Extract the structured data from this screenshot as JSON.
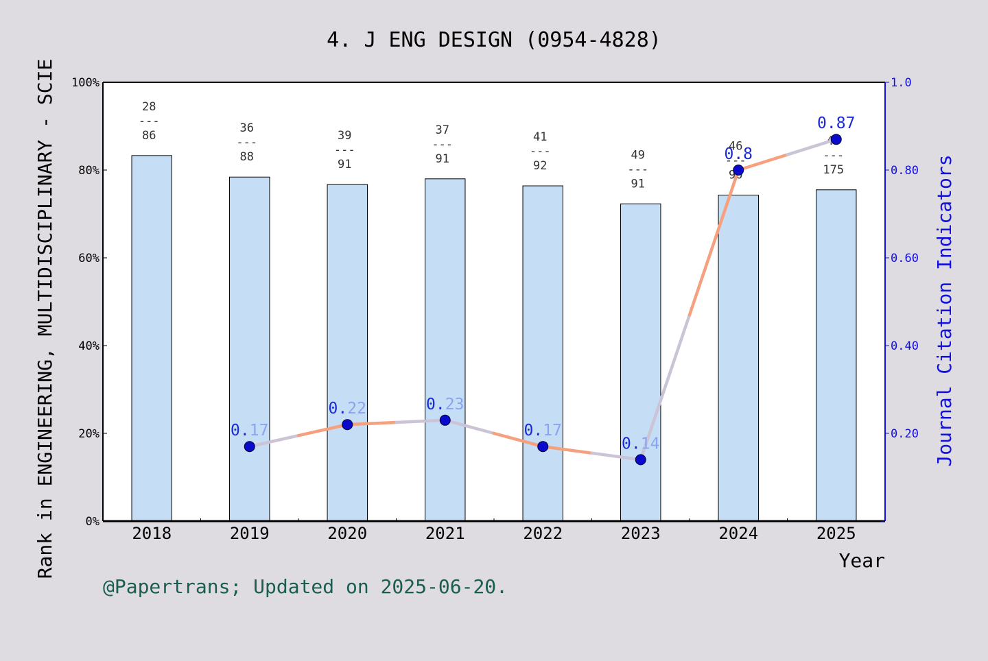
{
  "chart_data": {
    "type": "bar",
    "title": "4. J ENG DESIGN (0954-4828)",
    "xlabel": "Year",
    "ylabel": "Rank in ENGINEERING, MULTIDISCIPLINARY - SCIE",
    "y2label": "Journal Citation Indicators",
    "categories": [
      "2018",
      "2019",
      "2020",
      "2021",
      "2022",
      "2023",
      "2024",
      "2025"
    ],
    "ylim": [
      0,
      100
    ],
    "yticks": [
      "0%",
      "20%",
      "40%",
      "60%",
      "80%",
      "100%"
    ],
    "y2lim": [
      0,
      1.0
    ],
    "y2ticks": [
      "0.20",
      "0.40",
      "0.60",
      "0.80",
      "1.0"
    ],
    "bars": {
      "values": [
        83.3,
        78.4,
        76.7,
        78.0,
        76.4,
        72.3,
        74.3,
        75.5
      ],
      "rank": [
        "28",
        "36",
        "39",
        "37",
        "41",
        "49",
        "46",
        "43"
      ],
      "total": [
        "86",
        "88",
        "91",
        "91",
        "92",
        "91",
        "90",
        "175"
      ],
      "separator": "---",
      "color": "#c5def5"
    },
    "line": {
      "x": [
        "2019",
        "2020",
        "2021",
        "2022",
        "2023",
        "2024",
        "2025"
      ],
      "values": [
        0.17,
        0.22,
        0.23,
        0.17,
        0.14,
        0.8,
        0.87
      ],
      "labels": [
        "0.17",
        "0.22",
        "0.23",
        "0.17",
        "0.14",
        "0.8",
        "0.87"
      ],
      "line_color": "#f5a07e",
      "marker_color": "#0a0acc"
    },
    "grid": false
  },
  "footer": "@Papertrans; Updated on 2025-06-20."
}
